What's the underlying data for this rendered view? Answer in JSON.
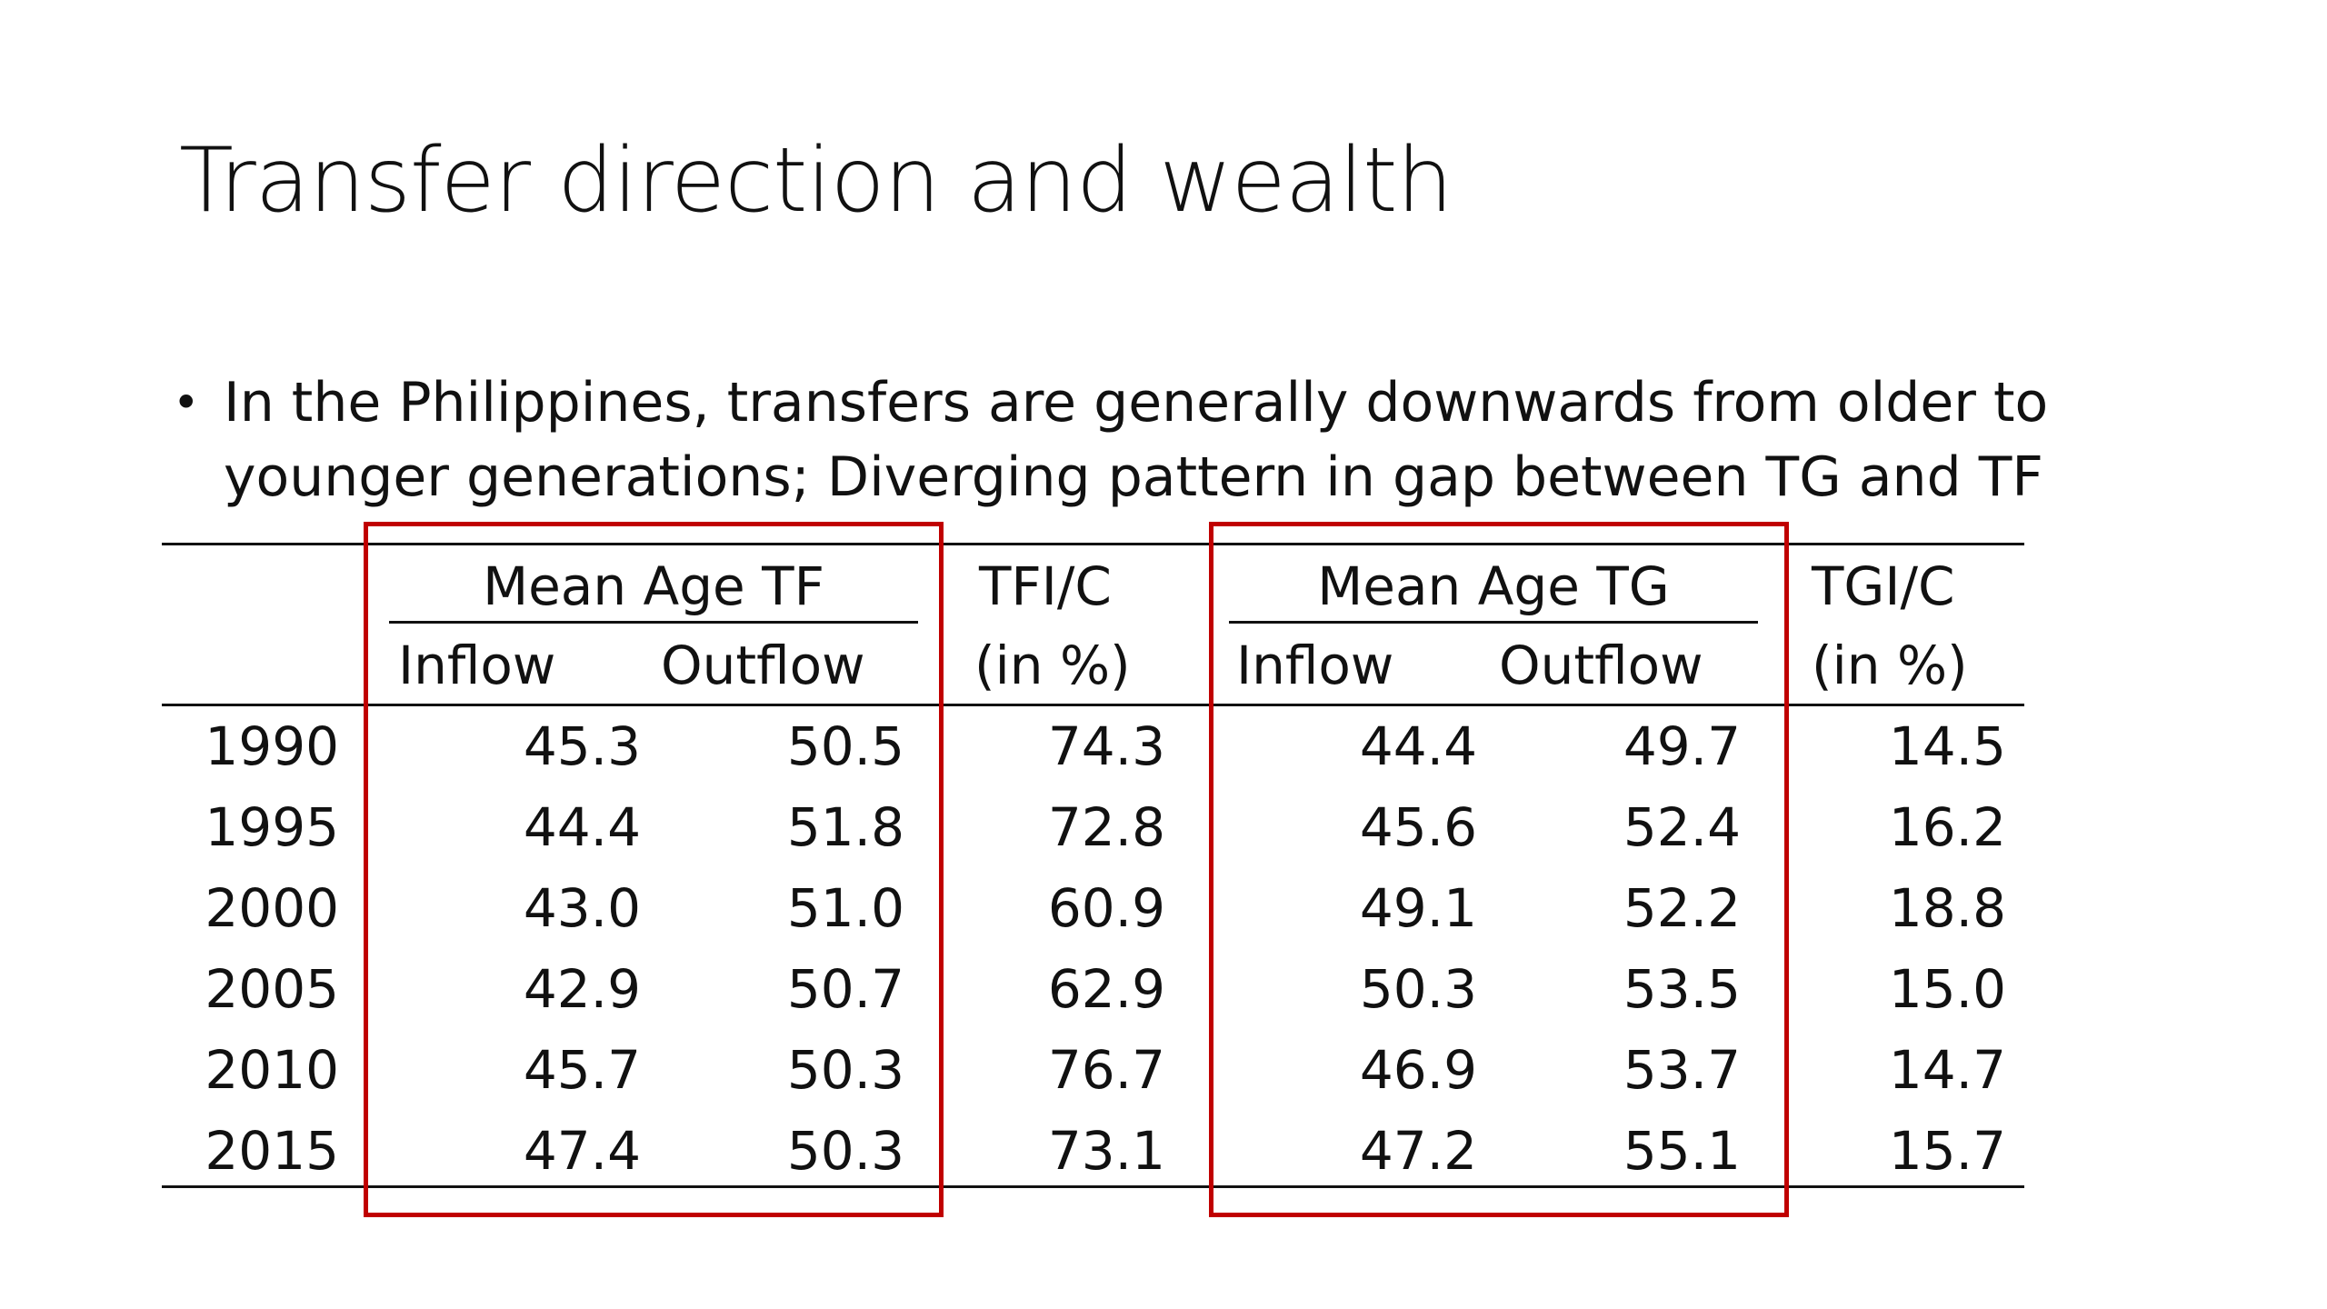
{
  "slide": {
    "title": "Transfer direction and wealth",
    "bullet_marker": "•",
    "bullet_text": "In the Philippines, transfers are generally downwards from older to younger generations; Diverging pattern in gap between TG and TF"
  },
  "table": {
    "headers": {
      "group_tf": "Mean Age TF",
      "group_tg": "Mean Age TG",
      "tfi_c_line1": "TFI/C",
      "tfi_c_line2": "(in %)",
      "tgi_c_line1": "TGI/C",
      "tgi_c_line2": "(in %)",
      "tf_inflow": "Inflow",
      "tf_outflow": "Outflow",
      "tg_inflow": "Inflow",
      "tg_outflow": "Outflow"
    },
    "rows": [
      {
        "year": "1990",
        "tf_inflow": "45.3",
        "tf_outflow": "50.5",
        "tfi_c": "74.3",
        "tg_inflow": "44.4",
        "tg_outflow": "49.7",
        "tgi_c": "14.5"
      },
      {
        "year": "1995",
        "tf_inflow": "44.4",
        "tf_outflow": "51.8",
        "tfi_c": "72.8",
        "tg_inflow": "45.6",
        "tg_outflow": "52.4",
        "tgi_c": "16.2"
      },
      {
        "year": "2000",
        "tf_inflow": "43.0",
        "tf_outflow": "51.0",
        "tfi_c": "60.9",
        "tg_inflow": "49.1",
        "tg_outflow": "52.2",
        "tgi_c": "18.8"
      },
      {
        "year": "2005",
        "tf_inflow": "42.9",
        "tf_outflow": "50.7",
        "tfi_c": "62.9",
        "tg_inflow": "50.3",
        "tg_outflow": "53.5",
        "tgi_c": "15.0"
      },
      {
        "year": "2010",
        "tf_inflow": "45.7",
        "tf_outflow": "50.3",
        "tfi_c": "76.7",
        "tg_inflow": "46.9",
        "tg_outflow": "53.7",
        "tgi_c": "14.7"
      },
      {
        "year": "2015",
        "tf_inflow": "47.4",
        "tf_outflow": "50.3",
        "tfi_c": "73.1",
        "tg_inflow": "47.2",
        "tg_outflow": "55.1",
        "tgi_c": "15.7"
      }
    ]
  },
  "colors": {
    "highlight_box": "#c00000",
    "text": "#111111",
    "background": "#ffffff"
  }
}
